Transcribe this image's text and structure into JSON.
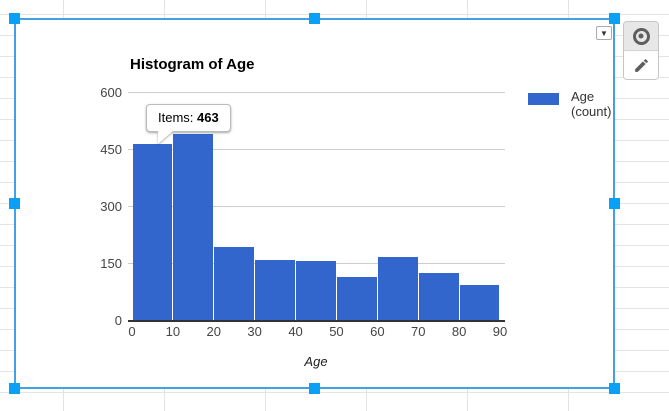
{
  "chart": {
    "title": "Histogram of Age",
    "axis_title": "Age",
    "legend": {
      "line1": "Age",
      "line2": "(count)"
    },
    "tooltip": {
      "label": "Items: ",
      "value": "463"
    }
  },
  "chart_data": {
    "type": "bar",
    "title": "Histogram of Age",
    "xlabel": "Age",
    "ylabel": "",
    "legend": "Age (count)",
    "legend_position": "right",
    "grid": true,
    "bin_edges": [
      0,
      10,
      20,
      30,
      40,
      50,
      60,
      70,
      80,
      90
    ],
    "x_tick_labels": [
      "0",
      "10",
      "20",
      "30",
      "40",
      "50",
      "60",
      "70",
      "80",
      "90"
    ],
    "values": [
      463,
      490,
      191,
      157,
      154,
      113,
      166,
      123,
      93
    ],
    "y_ticks": [
      0,
      150,
      300,
      450,
      600
    ],
    "ylim": [
      0,
      600
    ],
    "bar_color": "#3366cc",
    "tooltip": {
      "text": "Items: 463",
      "bin": "0-10",
      "value": 463
    }
  },
  "controls": {
    "dropdown_arrow": "▼"
  },
  "colors": {
    "bar": "#3366cc",
    "selection_border": "#43a0e4",
    "handle": "#0aa0f5",
    "gridline": "#cccccc"
  }
}
